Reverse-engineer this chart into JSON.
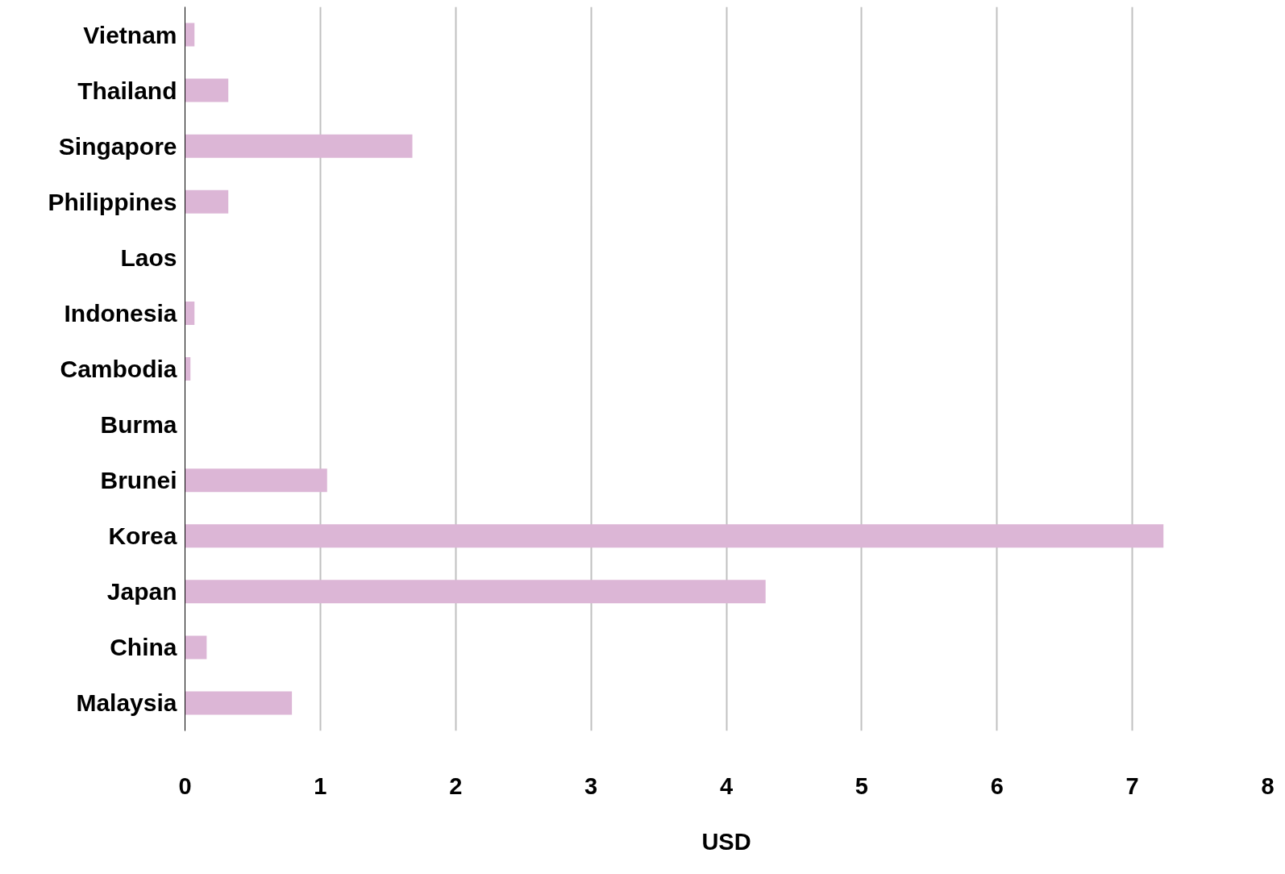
{
  "chart_data": {
    "type": "bar",
    "orientation": "horizontal",
    "xlabel": "USD",
    "categories": [
      "Vietnam",
      "Thailand",
      "Singapore",
      "Philippines",
      "Laos",
      "Indonesia",
      "Cambodia",
      "Burma",
      "Brunei",
      "Korea",
      "Japan",
      "China",
      "Malaysia"
    ],
    "values": [
      0.07,
      0.32,
      1.68,
      0.32,
      0,
      0.07,
      0.04,
      0,
      1.05,
      7.23,
      4.29,
      0.16,
      0.79
    ],
    "color": "#dcb6d6",
    "xlim": [
      0,
      8
    ],
    "xticks": [
      0,
      1,
      2,
      3,
      4,
      5,
      6,
      7,
      8
    ],
    "grid": "x"
  }
}
